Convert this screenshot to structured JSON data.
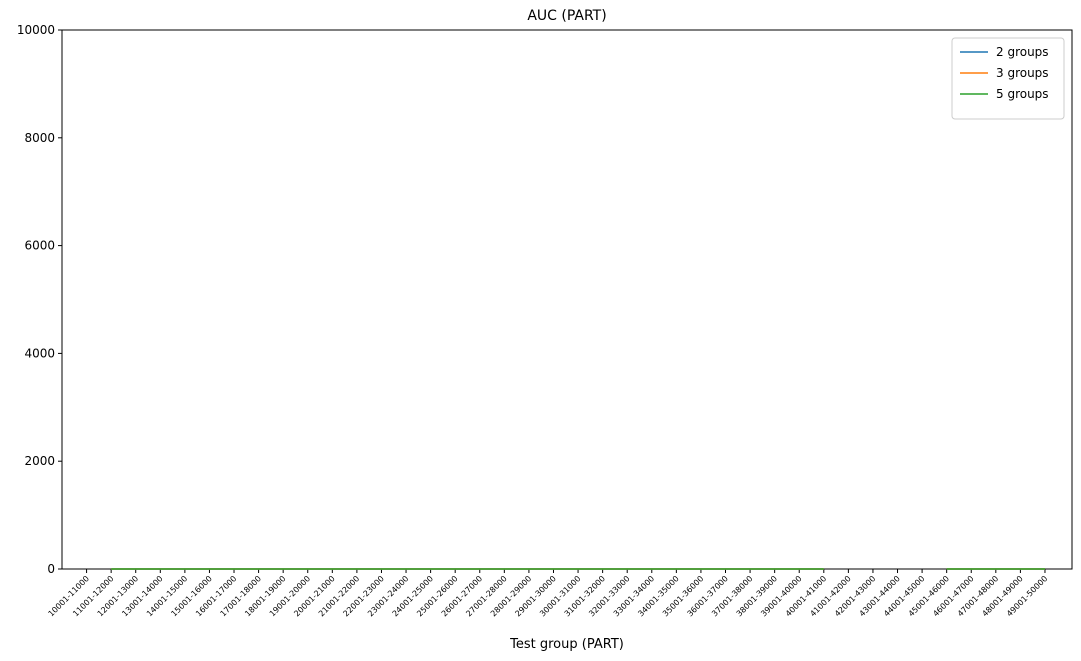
{
  "chart_data": {
    "type": "line",
    "title": "AUC (PART)",
    "xlabel": "Test group (PART)",
    "categories": [
      "10001-11000",
      "11001-12000",
      "12001-13000",
      "13001-14000",
      "14001-15000",
      "15001-16000",
      "16001-17000",
      "17001-18000",
      "18001-19000",
      "19001-20000",
      "20001-21000",
      "21001-22000",
      "22001-23000",
      "23001-24000",
      "24001-25000",
      "25001-26000",
      "26001-27000",
      "27001-28000",
      "28001-29000",
      "29001-30000",
      "30001-31000",
      "31001-32000",
      "32001-33000",
      "33001-34000",
      "34001-35000",
      "35001-36000",
      "36001-37000",
      "37001-38000",
      "38001-39000",
      "39001-40000",
      "40001-41000",
      "41001-42000",
      "42001-43000",
      "43001-44000",
      "44001-45000",
      "45001-46000",
      "46001-47000",
      "47001-48000",
      "48001-49000",
      "49001-50000"
    ],
    "series": [
      {
        "name": "2 groups",
        "color": "#1f77b4",
        "values": [
          null,
          0,
          0,
          0,
          0,
          0,
          0,
          0,
          0,
          0,
          0,
          0,
          0,
          0,
          0,
          0,
          0,
          0,
          0,
          0,
          0,
          0,
          0,
          0,
          0,
          0,
          0,
          0,
          0,
          0,
          0,
          null,
          null,
          null,
          null,
          0,
          0,
          0,
          0,
          0
        ]
      },
      {
        "name": "3 groups",
        "color": "#ff7f0e",
        "values": [
          null,
          0,
          0,
          0,
          0,
          0,
          0,
          0,
          0,
          0,
          0,
          0,
          0,
          0,
          0,
          0,
          0,
          0,
          0,
          0,
          0,
          0,
          0,
          0,
          0,
          0,
          0,
          0,
          0,
          0,
          0,
          null,
          null,
          null,
          null,
          0,
          0,
          0,
          0,
          0
        ]
      },
      {
        "name": "5 groups",
        "color": "#2ca02c",
        "values": [
          null,
          0,
          0,
          0,
          0,
          0,
          0,
          0,
          0,
          0,
          0,
          0,
          0,
          0,
          0,
          0,
          0,
          0,
          0,
          0,
          0,
          0,
          0,
          0,
          0,
          0,
          0,
          0,
          0,
          0,
          0,
          null,
          null,
          null,
          null,
          0,
          0,
          0,
          0,
          0
        ]
      }
    ],
    "ylim": [
      0,
      10000
    ],
    "yticks": [
      0,
      2000,
      4000,
      6000,
      8000,
      10000
    ],
    "legend": "upper right"
  }
}
